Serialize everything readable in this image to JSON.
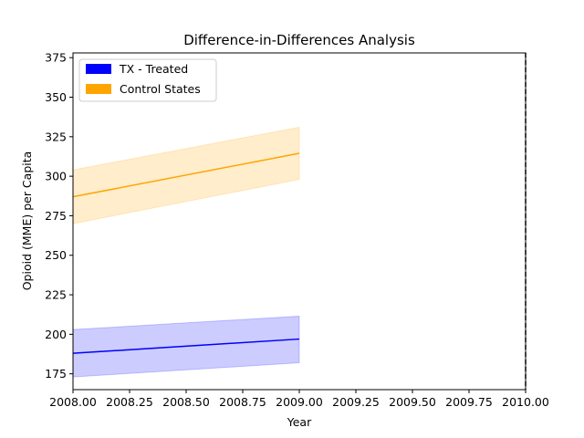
{
  "chart_data": {
    "type": "line",
    "title": "Difference-in-Differences Analysis",
    "xlabel": "Year",
    "ylabel": "Opioid (MME) per Capita",
    "xlim": [
      2008.0,
      2010.0
    ],
    "ylim": [
      165,
      378
    ],
    "xticks": [
      "2008.00",
      "2008.25",
      "2008.50",
      "2008.75",
      "2009.00",
      "2009.25",
      "2009.50",
      "2009.75",
      "2010.00"
    ],
    "yticks": [
      "175",
      "200",
      "225",
      "250",
      "275",
      "300",
      "325",
      "350",
      "375"
    ],
    "grid": false,
    "legend_position": "top-left",
    "vertical_line": {
      "x": 2010.0,
      "style": "dashed",
      "color": "#000000"
    },
    "series": [
      {
        "name": "TX - Treated",
        "color": "#0000ff",
        "x": [
          2008.0,
          2009.0
        ],
        "values": [
          188,
          197
        ],
        "lower": [
          173,
          182
        ],
        "upper": [
          203,
          211.5
        ]
      },
      {
        "name": "Control States",
        "color": "#ffa500",
        "x": [
          2008.0,
          2009.0
        ],
        "values": [
          287,
          314.5
        ],
        "lower": [
          270,
          298
        ],
        "upper": [
          304,
          331
        ]
      }
    ]
  }
}
